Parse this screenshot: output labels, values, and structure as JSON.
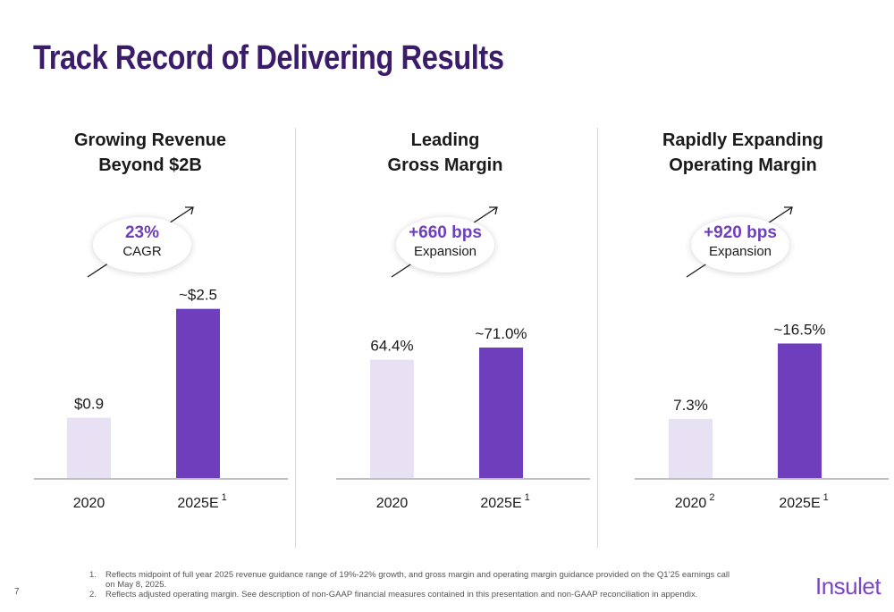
{
  "title": "Track Record of Delivering Results",
  "colors": {
    "title": "#3b1c6b",
    "accent": "#6f3ebd",
    "bar_2020": "#e8e1f4",
    "bar_2025": "#6f3ebd"
  },
  "panels": [
    {
      "title_line1": "Growing Revenue",
      "title_line2": "Beyond $2B",
      "badge_main": "23%",
      "badge_sub": "CAGR"
    },
    {
      "title_line1": "Leading",
      "title_line2": "Gross Margin",
      "badge_main": "+660 bps",
      "badge_sub": "Expansion"
    },
    {
      "title_line1": "Rapidly Expanding",
      "title_line2": "Operating Margin",
      "badge_main": "+920 bps",
      "badge_sub": "Expansion"
    }
  ],
  "chart_data": [
    {
      "type": "bar",
      "title": "Growing Revenue Beyond $2B",
      "categories": [
        "2020",
        "2025E"
      ],
      "category_superscripts": [
        "",
        "1"
      ],
      "values": [
        0.9,
        2.5
      ],
      "data_labels": [
        "$0.9",
        "~$2.5"
      ],
      "ylim": [
        0,
        3.1
      ],
      "grid": false
    },
    {
      "type": "bar",
      "title": "Leading Gross Margin",
      "categories": [
        "2020",
        "2025E"
      ],
      "category_superscripts": [
        "",
        "1"
      ],
      "values": [
        64.4,
        71.0
      ],
      "data_labels": [
        "64.4%",
        "~71.0%"
      ],
      "ylim": [
        0,
        114
      ],
      "grid": false
    },
    {
      "type": "bar",
      "title": "Rapidly Expanding Operating Margin",
      "categories": [
        "2020",
        "2025E"
      ],
      "category_superscripts": [
        "2",
        "1"
      ],
      "values": [
        7.3,
        16.5
      ],
      "data_labels": [
        "7.3%",
        "~16.5%"
      ],
      "ylim": [
        0,
        25.7
      ],
      "grid": false
    }
  ],
  "footnotes": [
    {
      "num": "1.",
      "text": "Reflects midpoint of full year 2025 revenue guidance range of 19%-22% growth, and gross margin and operating margin guidance provided on the Q1’25 earnings call on May 8, 2025."
    },
    {
      "num": "2.",
      "text": "Reflects adjusted operating margin. See description of non-GAAP financial measures contained in this presentation and non-GAAP reconciliation in appendix."
    }
  ],
  "page_number": "7",
  "logo_text": "Insulet"
}
